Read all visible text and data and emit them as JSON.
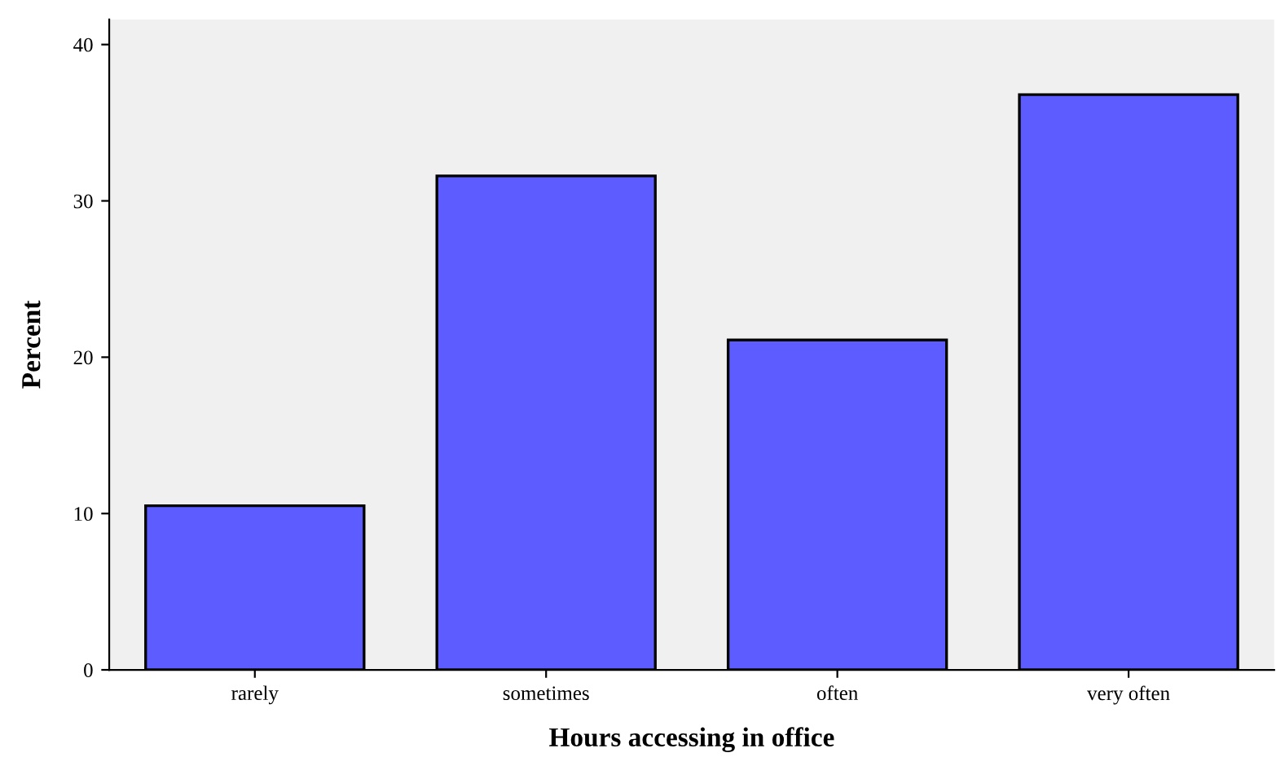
{
  "chart_data": {
    "type": "bar",
    "xlabel": "Hours accessing in office",
    "ylabel": "Percent",
    "categories": [
      "rarely",
      "sometimes",
      "often",
      "very often"
    ],
    "values": [
      10.5,
      31.6,
      21.1,
      36.8
    ],
    "color": "#5c5cff",
    "ylim": [
      0,
      41.6
    ],
    "yticks": [
      0,
      10,
      20,
      30,
      40
    ],
    "grid": false,
    "legend": false
  }
}
